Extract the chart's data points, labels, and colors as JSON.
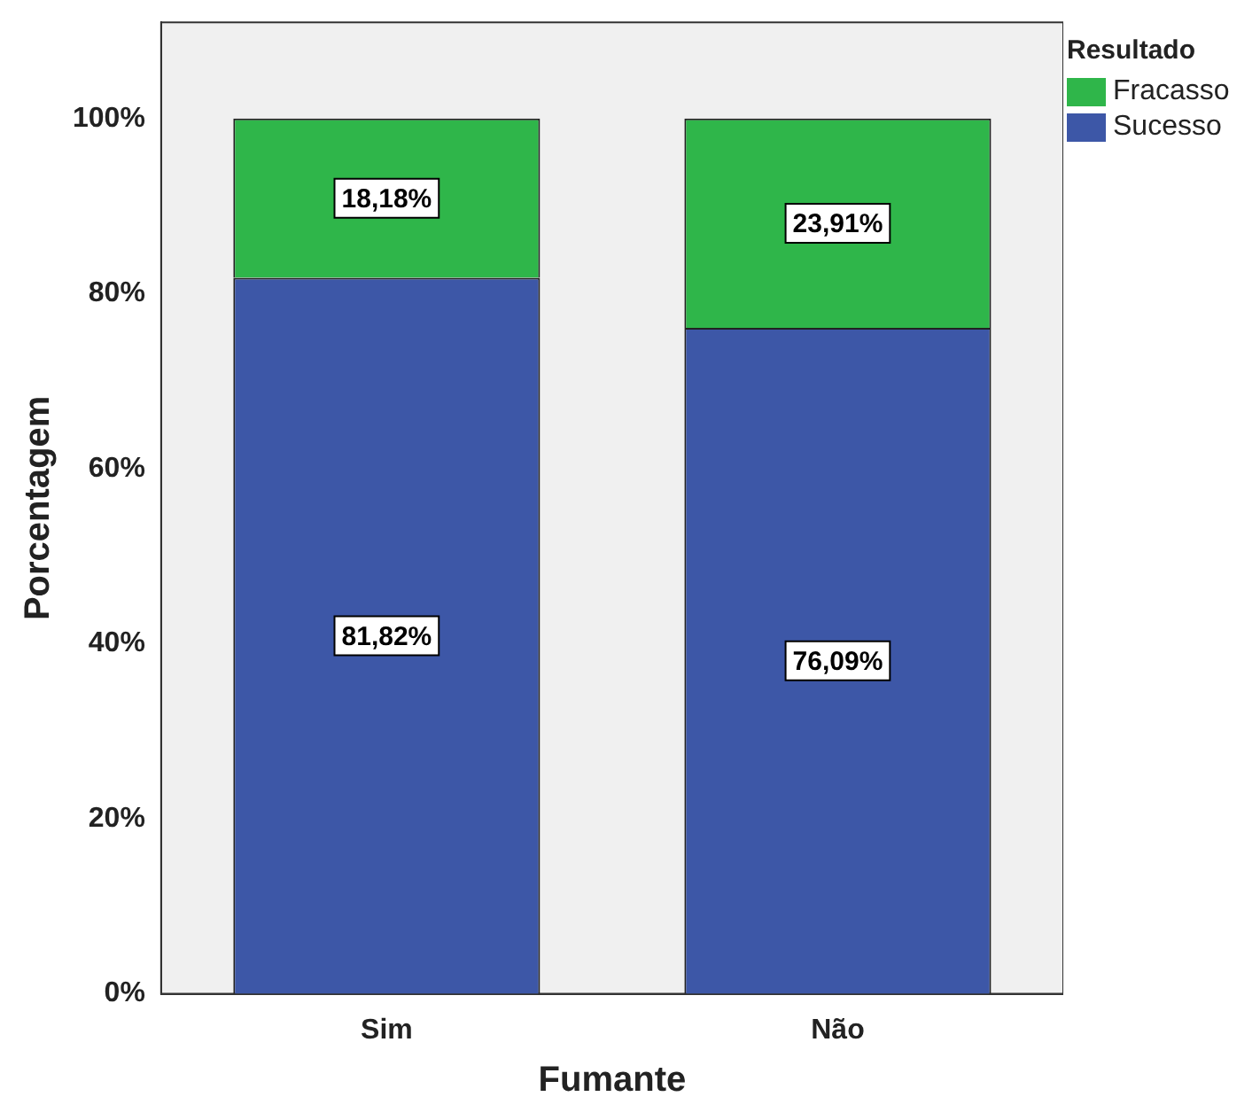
{
  "chart_data": {
    "type": "bar",
    "stacked": true,
    "xlabel": "Fumante",
    "ylabel": "Porcentagem",
    "legend_title": "Resultado",
    "legend": "right",
    "categories": [
      "Sim",
      "Não"
    ],
    "series": [
      {
        "name": "Sucesso",
        "color": "#3d57a7",
        "values": [
          81.82,
          76.09
        ],
        "value_labels": [
          "81,82%",
          "76,09%"
        ]
      },
      {
        "name": "Fracasso",
        "color": "#2fb64a",
        "values": [
          18.18,
          23.91
        ],
        "value_labels": [
          "18,18%",
          "23,91%"
        ]
      }
    ],
    "ylim": [
      0,
      111
    ],
    "yticks": [
      {
        "value": 0,
        "label": "0%"
      },
      {
        "value": 20,
        "label": "20%"
      },
      {
        "value": 40,
        "label": "40%"
      },
      {
        "value": 60,
        "label": "60%"
      },
      {
        "value": 80,
        "label": "80%"
      },
      {
        "value": 100,
        "label": "100%"
      }
    ]
  }
}
